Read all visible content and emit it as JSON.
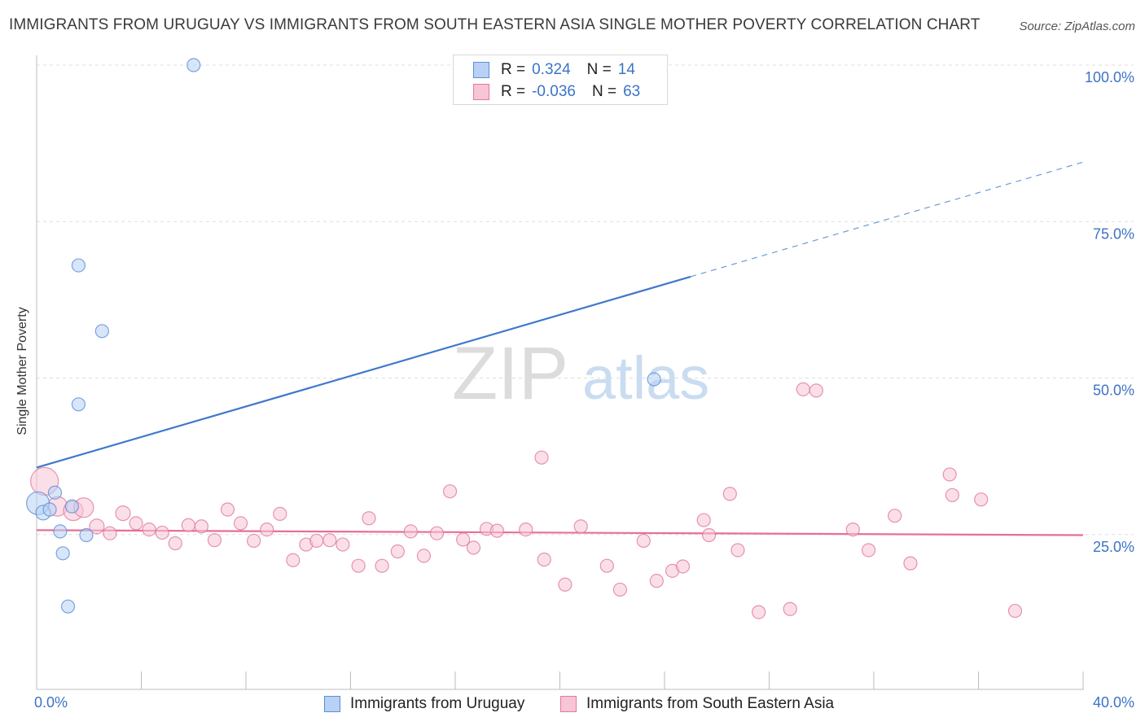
{
  "chart_data": {
    "type": "scatter",
    "title": "IMMIGRANTS FROM URUGUAY VS IMMIGRANTS FROM SOUTH EASTERN ASIA SINGLE MOTHER POVERTY CORRELATION CHART",
    "source": "Source: ZipAtlas.com",
    "ylabel": "Single Mother Poverty",
    "xlabel": "",
    "xlim": [
      0,
      40
    ],
    "ylim": [
      0,
      100
    ],
    "x_tick_labels": [
      "0.0%",
      "40.0%"
    ],
    "y_ticks": [
      {
        "value": 25,
        "label": "25.0%"
      },
      {
        "value": 50,
        "label": "50.0%"
      },
      {
        "value": 75,
        "label": "75.0%"
      },
      {
        "value": 100,
        "label": "100.0%"
      }
    ],
    "watermark": {
      "zip": "ZIP",
      "atlas": "atlas"
    },
    "series": [
      {
        "name": "Immigrants from Uruguay",
        "color": "#5b8fd6",
        "fill": "#b8d1f5",
        "R": "0.324",
        "N": "14",
        "trend": {
          "x0": 0,
          "y0": 35.7,
          "x1": 25,
          "y1": 66.2,
          "dash_x1": 40,
          "dash_y1": 84.5,
          "color": "#3f78cc"
        },
        "points": [
          [
            0.05,
            30.0,
            14
          ],
          [
            0.25,
            28.5,
            9
          ],
          [
            0.5,
            29.0,
            8
          ],
          [
            0.7,
            31.7,
            8
          ],
          [
            0.9,
            25.5,
            8
          ],
          [
            1.0,
            22.0,
            8
          ],
          [
            1.2,
            13.5,
            8
          ],
          [
            1.35,
            29.5,
            8
          ],
          [
            1.6,
            68.0,
            8
          ],
          [
            1.6,
            45.8,
            8
          ],
          [
            1.9,
            24.9,
            8
          ],
          [
            2.5,
            57.5,
            8
          ],
          [
            6.0,
            100.0,
            8
          ],
          [
            23.6,
            49.8,
            8
          ]
        ]
      },
      {
        "name": "Immigrants from South Eastern Asia",
        "color": "#e07a9c",
        "fill": "#f7c5d5",
        "R": "-0.036",
        "N": "63",
        "trend": {
          "x0": 0,
          "y0": 25.7,
          "x1": 40,
          "y1": 24.9,
          "color": "#e76f96"
        },
        "points": [
          [
            0.3,
            33.5,
            17
          ],
          [
            0.8,
            29.5,
            12
          ],
          [
            1.4,
            28.8,
            12
          ],
          [
            1.8,
            29.3,
            12
          ],
          [
            2.3,
            26.3,
            9
          ],
          [
            2.8,
            25.2,
            8
          ],
          [
            3.3,
            28.4,
            9
          ],
          [
            3.8,
            26.8,
            8
          ],
          [
            4.3,
            25.8,
            8
          ],
          [
            4.8,
            25.3,
            8
          ],
          [
            5.3,
            23.6,
            8
          ],
          [
            5.8,
            26.5,
            8
          ],
          [
            6.3,
            26.3,
            8
          ],
          [
            6.8,
            24.1,
            8
          ],
          [
            7.3,
            29.0,
            8
          ],
          [
            7.8,
            26.8,
            8
          ],
          [
            8.3,
            24.0,
            8
          ],
          [
            8.8,
            25.8,
            8
          ],
          [
            9.3,
            28.3,
            8
          ],
          [
            9.8,
            20.9,
            8
          ],
          [
            10.3,
            23.4,
            8
          ],
          [
            10.7,
            24.0,
            8
          ],
          [
            11.2,
            24.1,
            8
          ],
          [
            11.7,
            23.4,
            8
          ],
          [
            12.3,
            20.0,
            8
          ],
          [
            12.7,
            27.6,
            8
          ],
          [
            13.2,
            20.0,
            8
          ],
          [
            13.8,
            22.3,
            8
          ],
          [
            14.3,
            25.5,
            8
          ],
          [
            14.8,
            21.6,
            8
          ],
          [
            15.3,
            25.2,
            8
          ],
          [
            15.8,
            31.9,
            8
          ],
          [
            16.3,
            24.2,
            8
          ],
          [
            16.7,
            22.9,
            8
          ],
          [
            17.2,
            25.9,
            8
          ],
          [
            17.6,
            25.6,
            8
          ],
          [
            18.7,
            25.8,
            8
          ],
          [
            19.3,
            37.3,
            8
          ],
          [
            19.4,
            21.0,
            8
          ],
          [
            20.2,
            17.0,
            8
          ],
          [
            20.8,
            26.3,
            8
          ],
          [
            21.8,
            20.0,
            8
          ],
          [
            22.3,
            16.2,
            8
          ],
          [
            23.2,
            24.0,
            8
          ],
          [
            23.7,
            17.6,
            8
          ],
          [
            24.3,
            19.2,
            8
          ],
          [
            24.7,
            19.9,
            8
          ],
          [
            25.5,
            27.3,
            8
          ],
          [
            25.7,
            24.9,
            8
          ],
          [
            26.5,
            31.5,
            8
          ],
          [
            26.8,
            22.5,
            8
          ],
          [
            27.6,
            12.6,
            8
          ],
          [
            28.8,
            13.1,
            8
          ],
          [
            29.3,
            48.2,
            8
          ],
          [
            29.8,
            48.0,
            8
          ],
          [
            31.2,
            25.8,
            8
          ],
          [
            31.8,
            22.5,
            8
          ],
          [
            32.8,
            28.0,
            8
          ],
          [
            33.4,
            20.4,
            8
          ],
          [
            34.9,
            34.6,
            8
          ],
          [
            35.0,
            31.3,
            8
          ],
          [
            36.1,
            30.6,
            8
          ],
          [
            37.4,
            12.8,
            8
          ]
        ]
      }
    ]
  }
}
